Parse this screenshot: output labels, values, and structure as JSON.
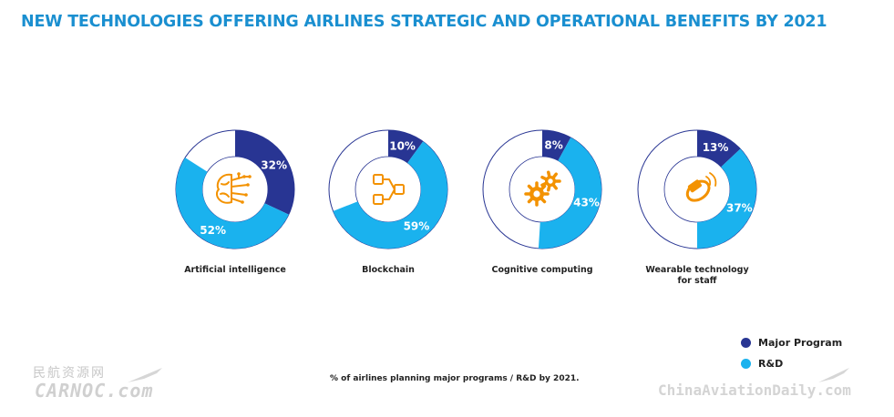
{
  "title": "NEW TECHNOLOGIES OFFERING AIRLINES STRATEGIC AND OPERATIONAL BENEFITS BY 2021",
  "colors": {
    "major_program": "#283593",
    "rnd": "#1ab2ee",
    "ring_outline": "#283593",
    "icon": "#f39200",
    "title": "#1a8fd0"
  },
  "legend": [
    {
      "label": "Major Program",
      "color": "#283593"
    },
    {
      "label": "R&D",
      "color": "#1ab2ee"
    }
  ],
  "footnote": "% of airlines planning major programs / R&D by 2021.",
  "watermarks": {
    "cn_text": "民航资源网",
    "carnoc": "CARNOC.com",
    "chinaaviation": "ChinaAviationDaily.com"
  },
  "chart_data": [
    {
      "type": "pie",
      "label": "Artificial intelligence",
      "icon": "brain-circuit-icon",
      "series": [
        {
          "name": "Major Program",
          "value": 32,
          "value_label": "32%"
        },
        {
          "name": "R&D",
          "value": 52,
          "value_label": "52%"
        }
      ]
    },
    {
      "type": "pie",
      "label": "Blockchain",
      "icon": "blockchain-icon",
      "series": [
        {
          "name": "Major Program",
          "value": 10,
          "value_label": "10%"
        },
        {
          "name": "R&D",
          "value": 59,
          "value_label": "59%"
        }
      ]
    },
    {
      "type": "pie",
      "label": "Cognitive computing",
      "icon": "gears-icon",
      "series": [
        {
          "name": "Major Program",
          "value": 8,
          "value_label": "8%"
        },
        {
          "name": "R&D",
          "value": 43,
          "value_label": "43%"
        }
      ]
    },
    {
      "type": "pie",
      "label": "Wearable technology\nfor staff",
      "icon": "wearable-icon",
      "series": [
        {
          "name": "Major Program",
          "value": 13,
          "value_label": "13%"
        },
        {
          "name": "R&D",
          "value": 37,
          "value_label": "37%"
        }
      ]
    }
  ]
}
